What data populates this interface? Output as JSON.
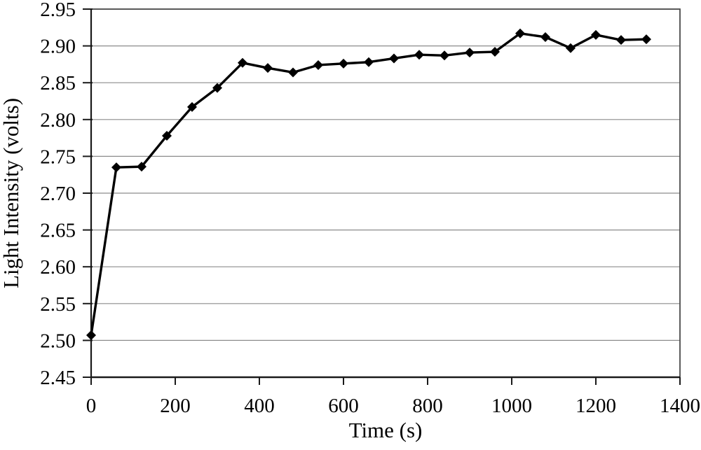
{
  "chart_data": {
    "type": "line",
    "title": "",
    "xlabel": "Time (s)",
    "ylabel": "Light Intensity (volts)",
    "x": [
      0,
      60,
      120,
      180,
      240,
      300,
      360,
      420,
      480,
      540,
      600,
      660,
      720,
      780,
      840,
      900,
      960,
      1020,
      1080,
      1140,
      1200,
      1260,
      1320
    ],
    "series": [
      {
        "name": "Light Intensity",
        "values": [
          2.507,
          2.735,
          2.736,
          2.778,
          2.817,
          2.843,
          2.877,
          2.87,
          2.864,
          2.874,
          2.876,
          2.878,
          2.883,
          2.888,
          2.887,
          2.891,
          2.892,
          2.917,
          2.912,
          2.897,
          2.915,
          2.908,
          2.909
        ]
      }
    ],
    "xlim": [
      0,
      1400
    ],
    "ylim": [
      2.45,
      2.95
    ],
    "x_ticks": [
      0,
      200,
      400,
      600,
      800,
      1000,
      1200,
      1400
    ],
    "x_tick_labels": [
      "0",
      "200",
      "400",
      "600",
      "800",
      "1000",
      "1200",
      "1400"
    ],
    "y_ticks": [
      2.45,
      2.5,
      2.55,
      2.6,
      2.65,
      2.7,
      2.75,
      2.8,
      2.85,
      2.9,
      2.95
    ],
    "y_tick_labels": [
      "2.45",
      "2.50",
      "2.55",
      "2.60",
      "2.65",
      "2.70",
      "2.75",
      "2.80",
      "2.85",
      "2.90",
      "2.95"
    ],
    "grid": "horizontal",
    "legend": "none",
    "marker": "diamond",
    "line_color": "#000000",
    "marker_color": "#000000",
    "gridline_color": "#8c8c8c",
    "border_color": "#4a4a4a",
    "axis_color": "#1a1a1a",
    "text_color": "#000000",
    "background": "#ffffff"
  }
}
